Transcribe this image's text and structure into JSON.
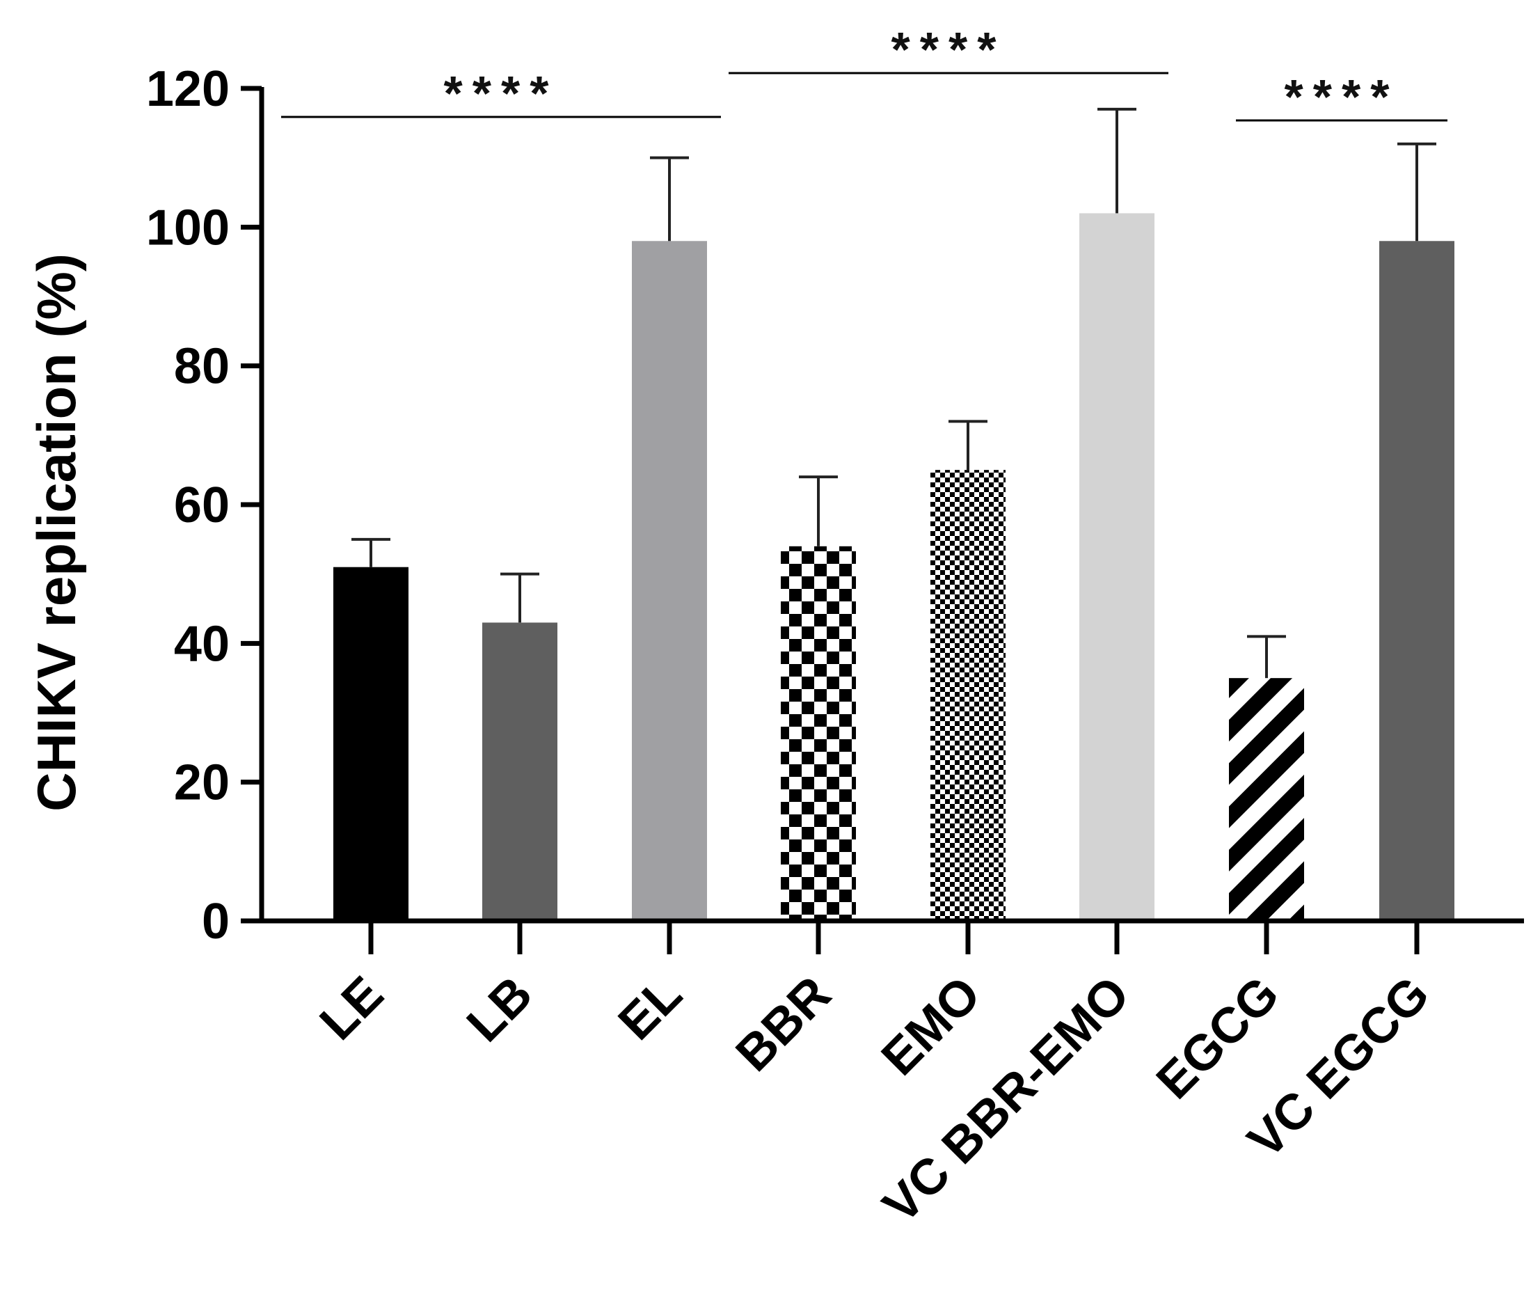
{
  "chart_data": {
    "type": "bar",
    "title": "",
    "xlabel": "",
    "ylabel": "CHIKV replication (%)",
    "ylim": [
      0,
      120
    ],
    "yticks": [
      0,
      20,
      40,
      60,
      80,
      100,
      120
    ],
    "ytick_labels": [
      "0",
      "20",
      "40",
      "60",
      "80",
      "100",
      "120"
    ],
    "categories": [
      "LE",
      "LB",
      "EL",
      "BBR",
      "EMO",
      "VC BBR-EMO",
      "EGCG",
      "VC EGCG"
    ],
    "values": [
      51,
      43,
      98,
      54,
      65,
      102,
      35,
      98
    ],
    "errors": [
      4,
      7,
      12,
      10,
      7,
      15,
      6,
      14
    ],
    "fills": [
      {
        "pattern": "solid",
        "color": "#000000"
      },
      {
        "pattern": "solid",
        "color": "#5f5f5f"
      },
      {
        "pattern": "solid",
        "color": "#a0a0a3"
      },
      {
        "pattern": "checker-large",
        "color": "#000000"
      },
      {
        "pattern": "checker-small",
        "color": "#000000"
      },
      {
        "pattern": "solid",
        "color": "#d3d3d3"
      },
      {
        "pattern": "diagonal-stripes",
        "color": "#000000"
      },
      {
        "pattern": "solid",
        "color": "#5f5f5f"
      }
    ],
    "significance": [
      {
        "from": "LE",
        "to": "EL",
        "label": "****"
      },
      {
        "from": "BBR",
        "to": "VC BBR-EMO",
        "label": "****"
      },
      {
        "from": "EGCG",
        "to": "VC EGCG",
        "label": "****"
      }
    ]
  }
}
